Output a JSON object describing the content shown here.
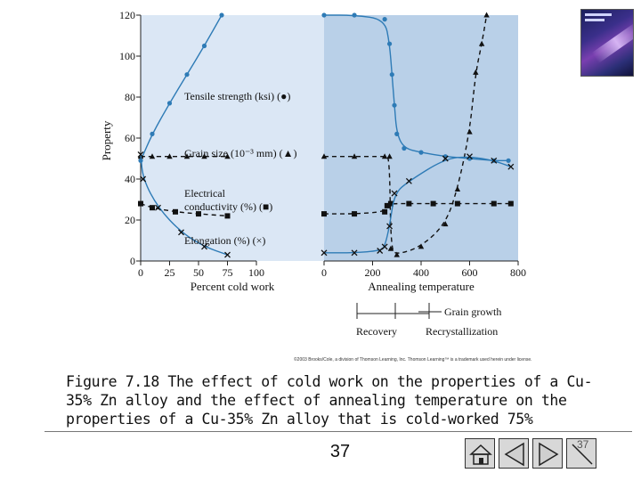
{
  "chart_data": {
    "type": "line",
    "ylabel": "Property",
    "ylim": [
      0,
      120
    ],
    "yticks": [
      "0",
      "20",
      "40",
      "60",
      "80",
      "100",
      "120"
    ],
    "panels": [
      {
        "name": "cold_work",
        "xlabel": "Percent cold work",
        "xlim": [
          0,
          100
        ],
        "xticks": [
          "0",
          "25",
          "50",
          "75",
          "100"
        ],
        "series": [
          {
            "name": "Tensile strength (ksi)",
            "marker": "circle",
            "style": "solid",
            "x": [
              0,
              10,
              25,
              40,
              55,
              70
            ],
            "y": [
              49,
              62,
              77,
              91,
              105,
              120
            ]
          },
          {
            "name": "Grain size (10⁻³ mm)",
            "marker": "triangle",
            "style": "dashed",
            "x": [
              0,
              10,
              25,
              40,
              55,
              75
            ],
            "y": [
              51,
              51,
              51,
              51,
              51,
              51
            ]
          },
          {
            "name": "Electrical conductivity (%)",
            "marker": "square",
            "style": "dashed",
            "x": [
              0,
              10,
              30,
              50,
              75
            ],
            "y": [
              28,
              26,
              24,
              23,
              22
            ]
          },
          {
            "name": "Elongation (%)",
            "marker": "x",
            "style": "solid",
            "x": [
              0,
              2,
              15,
              35,
              55,
              75
            ],
            "y": [
              52,
              40,
              26,
              14,
              7,
              3
            ]
          }
        ]
      },
      {
        "name": "annealing",
        "xlabel": "Annealing temperature",
        "xlim": [
          0,
          800
        ],
        "xticks": [
          "0",
          "200",
          "400",
          "600",
          "800"
        ],
        "series": [
          {
            "name": "Tensile strength (ksi)",
            "marker": "circle",
            "style": "solid",
            "x": [
              0,
              125,
              250,
              270,
              280,
              290,
              300,
              330,
              400,
              500,
              600,
              700,
              760
            ],
            "y": [
              120,
              120,
              118,
              106,
              91,
              76,
              62,
              55,
              53,
              51,
              50,
              49,
              49
            ]
          },
          {
            "name": "Grain size (10⁻³ mm)",
            "marker": "triangle",
            "style": "dashed",
            "x": [
              0,
              125,
              250,
              270,
              275,
              300,
              400,
              500,
              550,
              600,
              625,
              650,
              670
            ],
            "y": [
              51,
              51,
              51,
              51,
              6,
              3,
              7,
              18,
              35,
              63,
              92,
              106,
              120
            ]
          },
          {
            "name": "Electrical conductivity (%)",
            "marker": "square",
            "style": "dashed",
            "x": [
              0,
              125,
              250,
              260,
              275,
              350,
              450,
              550,
              700,
              770
            ],
            "y": [
              23,
              23,
              24,
              27,
              28,
              28,
              28,
              28,
              28,
              28
            ]
          },
          {
            "name": "Elongation (%)",
            "marker": "x",
            "style": "solid",
            "x": [
              0,
              125,
              230,
              250,
              270,
              290,
              350,
              500,
              600,
              700,
              770
            ],
            "y": [
              4,
              4,
              5,
              7,
              17,
              33,
              39,
              50,
              51,
              49,
              46
            ]
          }
        ]
      }
    ],
    "annotations": {
      "tensile": "Tensile strength (ksi) (●)",
      "grain": "Grain size (10⁻³ mm) (▲)",
      "cond1": "Electrical",
      "cond2": "conductivity (%) (■)",
      "elong": "Elongation (%) (×)"
    },
    "regions": {
      "recovery": "Recovery",
      "recrystallization": "Recrystallization",
      "grain_growth": "Grain growth"
    }
  },
  "copyright": "©2003 Brooks/Cole, a division of Thomson Learning, Inc.  Thomson Learning™ is a trademark used herein under license.",
  "caption": "Figure 7.18  The effect of cold work on the properties of a Cu-35% Zn alloy and the effect of annealing temperature on the properties of a Cu-35% Zn alloy that is cold-worked 75%",
  "page_number": "37",
  "nav_page_number": "37",
  "colors": {
    "panel_left": "#dbe7f5",
    "panel_right": "#b9d0e8",
    "line": "#2e7bb6",
    "dark": "#111111"
  }
}
